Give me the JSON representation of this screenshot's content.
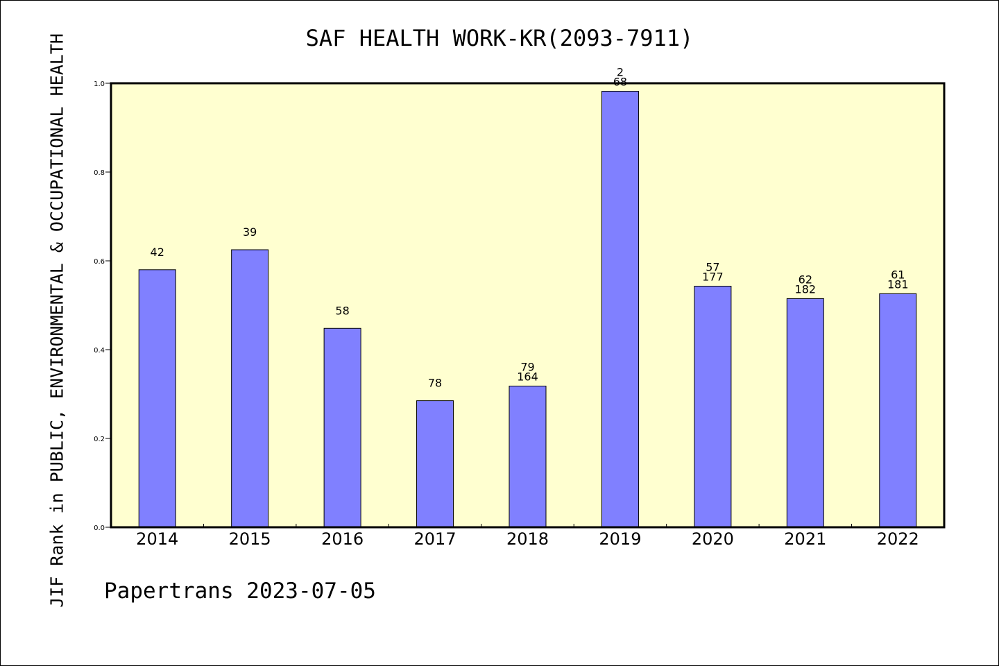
{
  "footer": "Papertrans 2023-07-05",
  "colors": {
    "plot_background": "#ffffd0",
    "bar_fill": "#8080ff",
    "axis": "#000000"
  },
  "chart_data": {
    "type": "bar",
    "title": "SAF HEALTH WORK-KR(2093-7911)",
    "xlabel": "",
    "ylabel": "JIF Rank in PUBLIC, ENVIRONMENTAL & OCCUPATIONAL HEALTH",
    "ylim": [
      0,
      1.0
    ],
    "yticks": [
      "0.0",
      "0.2",
      "0.4",
      "0.6",
      "0.8",
      "1.0"
    ],
    "grid": false,
    "categories": [
      "2014",
      "2015",
      "2016",
      "2017",
      "2018",
      "2019",
      "2020",
      "2021",
      "2022"
    ],
    "values": [
      0.58,
      0.625,
      0.448,
      0.285,
      0.318,
      0.982,
      0.543,
      0.515,
      0.526
    ],
    "labels": [
      [
        "42"
      ],
      [
        "39"
      ],
      [
        "58"
      ],
      [
        "78"
      ],
      [
        "79",
        "164"
      ],
      [
        "2",
        "68"
      ],
      [
        "57",
        "177"
      ],
      [
        "62",
        "182"
      ],
      [
        "61",
        "181"
      ]
    ]
  }
}
